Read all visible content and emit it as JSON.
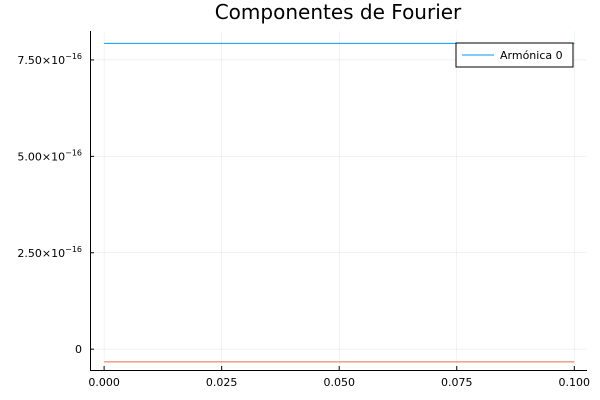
{
  "chart_data": {
    "type": "line",
    "title": "Componentes de Fourier",
    "xlabel": "",
    "ylabel": "",
    "xlim": [
      -0.003,
      0.1027
    ],
    "ylim": [
      -5.4e-17,
      8.25e-16
    ],
    "grid": true,
    "legend_position": "top-right",
    "x_ticks": [
      {
        "value": 0.0,
        "label": "0.000"
      },
      {
        "value": 0.025,
        "label": "0.025"
      },
      {
        "value": 0.05,
        "label": "0.050"
      },
      {
        "value": 0.075,
        "label": "0.075"
      },
      {
        "value": 0.1,
        "label": "0.100"
      }
    ],
    "y_ticks": [
      {
        "value": 0,
        "mantissa": "0",
        "exponent": ""
      },
      {
        "value": 2.5e-16,
        "mantissa": "2.50×10",
        "exponent": "−16"
      },
      {
        "value": 5e-16,
        "mantissa": "5.00×10",
        "exponent": "−16"
      },
      {
        "value": 7.5e-16,
        "mantissa": "7.50×10",
        "exponent": "−16"
      }
    ],
    "series": [
      {
        "name": "Armónica 0",
        "color": "#009AFA",
        "x": [
          0.0,
          0.1
        ],
        "y": [
          7.93e-16,
          7.93e-16
        ],
        "in_legend": true
      },
      {
        "name": "",
        "color": "#E26F46",
        "x": [
          0.0,
          0.1
        ],
        "y": [
          -3.3e-17,
          -3.3e-17
        ],
        "in_legend": false
      }
    ]
  }
}
